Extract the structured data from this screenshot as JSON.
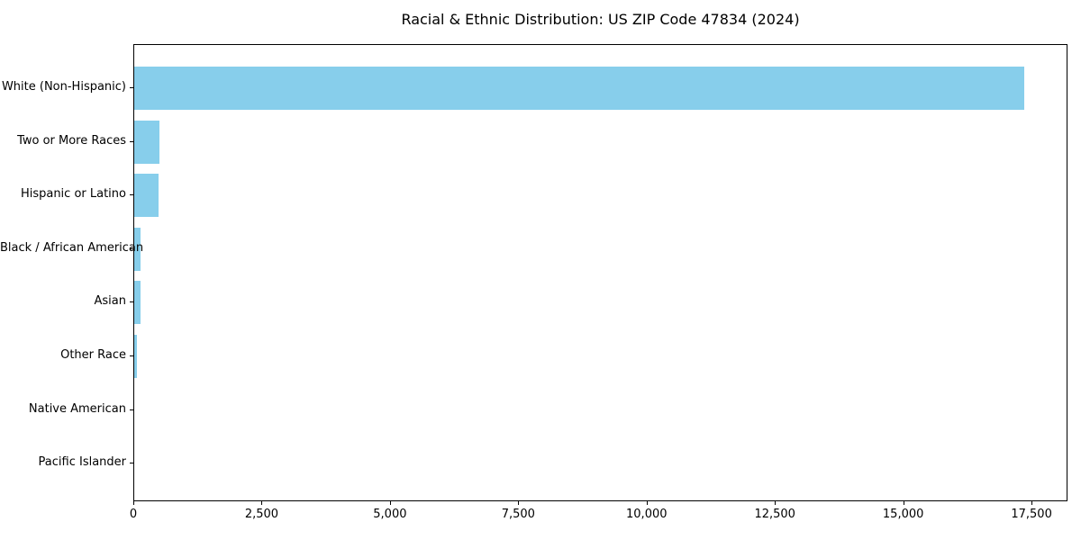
{
  "title": "Racial & Ethnic Distribution: US ZIP Code 47834 (2024)",
  "chart_data": {
    "type": "bar",
    "orientation": "horizontal",
    "title": "Racial & Ethnic Distribution: US ZIP Code 47834 (2024)",
    "xlabel": "",
    "ylabel": "",
    "categories": [
      "White (Non-Hispanic)",
      "Two or More Races",
      "Hispanic or Latino",
      "Black / African American",
      "Asian",
      "Other Race",
      "Native American",
      "Pacific Islander"
    ],
    "values": [
      17340,
      500,
      480,
      130,
      125,
      50,
      0,
      0
    ],
    "xlim": [
      0,
      18200
    ],
    "xticks": [
      0,
      2500,
      5000,
      7500,
      10000,
      12500,
      15000,
      17500
    ],
    "xtick_labels": [
      "0",
      "2,500",
      "5,000",
      "7,500",
      "10,000",
      "12,500",
      "15,000",
      "17,500"
    ],
    "bar_color": "#87CEEB",
    "grid": false,
    "legend": null
  }
}
